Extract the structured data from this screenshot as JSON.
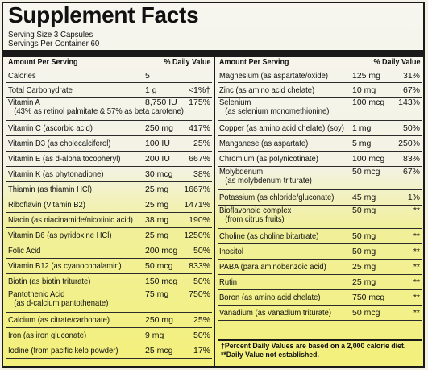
{
  "title": "Supplement Facts",
  "serving_size": "Serving Size 3 Capsules",
  "servings_per_container": "Servings Per Container 60",
  "left": {
    "header": {
      "amount": "Amount Per Serving",
      "dv": "% Daily Value"
    },
    "rows": [
      {
        "name": "Calories",
        "amount": "5",
        "dv": ""
      },
      {
        "name": "Total Carbohydrate",
        "amount": "1 g",
        "dv": "<1%†"
      },
      {
        "name": "Vitamin A",
        "name2": "(43% as retinol palmitate & 57% as beta carotene)",
        "amount": "8,750 IU",
        "dv": "175%"
      },
      {
        "name": "Vitamin C (ascorbic acid)",
        "amount": "250 mg",
        "dv": "417%"
      },
      {
        "name": "Vitamin D3 (as cholecalciferol)",
        "amount": "100 IU",
        "dv": "25%"
      },
      {
        "name": "Vitamin E (as d-alpha tocopheryl)",
        "amount": "200 IU",
        "dv": "667%"
      },
      {
        "name": "Vitamin K (as phytonadione)",
        "amount": "30 mcg",
        "dv": "38%"
      },
      {
        "name": "Thiamin (as thiamin HCl)",
        "amount": "25 mg",
        "dv": "1667%"
      },
      {
        "name": "Riboflavin (Vitamin B2)",
        "amount": "25 mg",
        "dv": "1471%"
      },
      {
        "name": "Niacin (as niacinamide/nicotinic acid)",
        "amount": "38 mg",
        "dv": "190%"
      },
      {
        "name": "Vitamin B6 (as pyridoxine HCl)",
        "amount": "25 mg",
        "dv": "1250%"
      },
      {
        "name": "Folic Acid",
        "amount": "200 mcg",
        "dv": "50%"
      },
      {
        "name": "Vitamin B12 (as cyanocobalamin)",
        "amount": "50 mcg",
        "dv": "833%"
      },
      {
        "name": "Biotin (as biotin triturate)",
        "amount": "150 mcg",
        "dv": "50%"
      },
      {
        "name": "Pantothenic Acid",
        "name2": "(as d-calcium pantothenate)",
        "amount": "75 mg",
        "dv": "750%"
      },
      {
        "name": "Calcium (as citrate/carbonate)",
        "amount": "250 mg",
        "dv": "25%"
      },
      {
        "name": "Iron (as iron gluconate)",
        "amount": "9 mg",
        "dv": "50%"
      },
      {
        "name": "Iodine (from pacific kelp powder)",
        "amount": "25 mcg",
        "dv": "17%"
      }
    ]
  },
  "right": {
    "header": {
      "amount": "Amount Per Serving",
      "dv": "% Daily Value"
    },
    "rows": [
      {
        "name": "Magnesium (as aspartate/oxide)",
        "amount": "125 mg",
        "dv": "31%"
      },
      {
        "name": "Zinc (as amino acid chelate)",
        "amount": "10 mg",
        "dv": "67%"
      },
      {
        "name": "Selenium",
        "name2": "(as selenium monomethionine)",
        "amount": "100 mcg",
        "dv": "143%"
      },
      {
        "name": "Copper (as amino acid chelate) (soy)",
        "amount": "1 mg",
        "dv": "50%"
      },
      {
        "name": "Manganese (as aspartate)",
        "amount": "5 mg",
        "dv": "250%"
      },
      {
        "name": "Chromium (as polynicotinate)",
        "amount": "100 mcg",
        "dv": "83%"
      },
      {
        "name": "Molybdenum",
        "name2": "(as molybdenum triturate)",
        "amount": "50 mcg",
        "dv": "67%"
      },
      {
        "name": "Potassium (as chloride/gluconate)",
        "amount": "45 mg",
        "dv": "1%"
      },
      {
        "name": "Bioflavonoid complex",
        "name2": "(from citrus fruits)",
        "amount": "50 mg",
        "dv": "**"
      },
      {
        "name": "Choline (as choline bitartrate)",
        "amount": "50 mg",
        "dv": "**"
      },
      {
        "name": "Inositol",
        "amount": "50 mg",
        "dv": "**"
      },
      {
        "name": "PABA (para aminobenzoic acid)",
        "amount": "25 mg",
        "dv": "**"
      },
      {
        "name": "Rutin",
        "amount": "25 mg",
        "dv": "**"
      },
      {
        "name": "Boron (as amino acid chelate)",
        "amount": "750 mcg",
        "dv": "**"
      },
      {
        "name": "Vanadium (as vanadium triturate)",
        "amount": "50 mcg",
        "dv": "**"
      }
    ]
  },
  "footnotes": [
    "†Percent Daily Values are based on a 2,000 calorie diet.",
    "**Daily Value not established."
  ]
}
